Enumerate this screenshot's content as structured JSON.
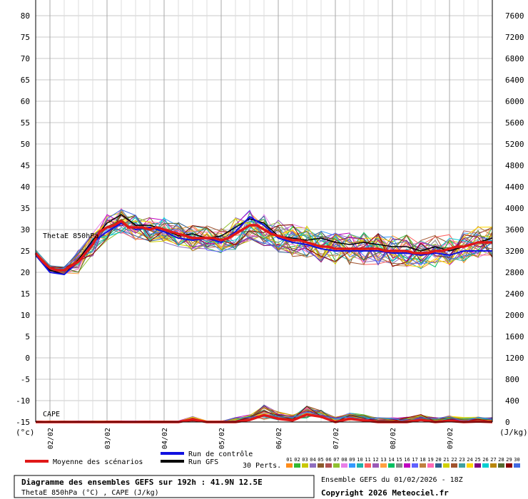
{
  "chart_data": {
    "type": "line",
    "left_axis": {
      "unit": "(°c)",
      "ticks": [
        "80",
        "75",
        "70",
        "65",
        "60",
        "55",
        "50",
        "45",
        "40",
        "35",
        "30",
        "25",
        "20",
        "15",
        "10",
        "5",
        "0",
        "-5",
        "-10",
        "-15"
      ],
      "range": [
        -15,
        80
      ]
    },
    "right_axis": {
      "unit": "(J/kg)",
      "ticks": [
        "7600",
        "7200",
        "6800",
        "6400",
        "6000",
        "5600",
        "5200",
        "4800",
        "4400",
        "4000",
        "3600",
        "3200",
        "2800",
        "2400",
        "2000",
        "1600",
        "1200",
        "800",
        "400",
        "0"
      ],
      "range": [
        0,
        7600
      ]
    },
    "date_ticks": [
      "02/02",
      "03/02",
      "04/02",
      "05/02",
      "06/02",
      "07/02",
      "08/02",
      "09/02"
    ],
    "x_range_hours": [
      0,
      192
    ],
    "grid": true,
    "labels": {
      "thetae": "ThetaE 850hPa",
      "cape": "CAPE"
    },
    "legend": {
      "mean": "Moyenne des scénarios",
      "control": "Run de contrôle",
      "gfs": "Run GFS",
      "perts": "30 Perts.",
      "pert_numbers": [
        "01",
        "02",
        "03",
        "04",
        "05",
        "06",
        "07",
        "08",
        "09",
        "10",
        "11",
        "12",
        "13",
        "14",
        "15",
        "16",
        "17",
        "18",
        "19",
        "20",
        "21",
        "22",
        "23",
        "24",
        "25",
        "26",
        "27",
        "28",
        "29",
        "30"
      ],
      "pert_colors": [
        "#ff8c1a",
        "#33b833",
        "#c8c800",
        "#8f6fbf",
        "#8b5a2b",
        "#b05050",
        "#90c030",
        "#e87fe8",
        "#3399ff",
        "#20b2aa",
        "#ff6060",
        "#9b59b6",
        "#ff9f40",
        "#00c060",
        "#888888",
        "#c000c0",
        "#6060ff",
        "#c08040",
        "#ff69b4",
        "#306090",
        "#d0d000",
        "#a0522d",
        "#40a0a0",
        "#ffd700",
        "#800080",
        "#00ced1",
        "#b8860b",
        "#556b2f",
        "#8b0000",
        "#4169e1"
      ]
    },
    "mean_color": "#e01818",
    "control_color": "#1010e0",
    "gfs_color": "#000000",
    "thetae_mean": [
      [
        0,
        24.5
      ],
      [
        3,
        22.5
      ],
      [
        6,
        21
      ],
      [
        9,
        20.5
      ],
      [
        12,
        20.5
      ],
      [
        15,
        21.5
      ],
      [
        18,
        22.5
      ],
      [
        21,
        24.5
      ],
      [
        24,
        26.5
      ],
      [
        27,
        29.5
      ],
      [
        30,
        30.5
      ],
      [
        33,
        31
      ],
      [
        36,
        32
      ],
      [
        39,
        30.5
      ],
      [
        42,
        30.5
      ],
      [
        45,
        30.5
      ],
      [
        48,
        30
      ],
      [
        51,
        30.5
      ],
      [
        54,
        30
      ],
      [
        57,
        29.5
      ],
      [
        60,
        29
      ],
      [
        63,
        28.5
      ],
      [
        66,
        28
      ],
      [
        69,
        28
      ],
      [
        72,
        28
      ],
      [
        75,
        28
      ],
      [
        78,
        27.5
      ],
      [
        81,
        28
      ],
      [
        84,
        29
      ],
      [
        87,
        30
      ],
      [
        90,
        31
      ],
      [
        93,
        31
      ],
      [
        96,
        30
      ],
      [
        99,
        29
      ],
      [
        102,
        28.5
      ],
      [
        105,
        28
      ],
      [
        108,
        27.5
      ],
      [
        111,
        27.5
      ],
      [
        114,
        27
      ],
      [
        117,
        26.5
      ],
      [
        120,
        26
      ],
      [
        123,
        26
      ],
      [
        126,
        25.5
      ],
      [
        129,
        25.5
      ],
      [
        132,
        25.5
      ],
      [
        135,
        25.5
      ],
      [
        138,
        25.5
      ],
      [
        141,
        25.5
      ],
      [
        144,
        25.5
      ],
      [
        147,
        25
      ],
      [
        150,
        25
      ],
      [
        153,
        25
      ],
      [
        156,
        25
      ],
      [
        159,
        24.5
      ],
      [
        162,
        24.5
      ],
      [
        165,
        24.5
      ],
      [
        168,
        25
      ],
      [
        171,
        25
      ],
      [
        174,
        25.5
      ],
      [
        177,
        26
      ],
      [
        180,
        26
      ],
      [
        183,
        26.5
      ],
      [
        186,
        27
      ],
      [
        189,
        27
      ],
      [
        192,
        27
      ]
    ],
    "thetae_control": [
      [
        0,
        24
      ],
      [
        6,
        20
      ],
      [
        12,
        19.5
      ],
      [
        18,
        22.5
      ],
      [
        24,
        27
      ],
      [
        30,
        29.5
      ],
      [
        36,
        31.5
      ],
      [
        42,
        30
      ],
      [
        48,
        30.5
      ],
      [
        54,
        29.5
      ],
      [
        60,
        28
      ],
      [
        66,
        27.5
      ],
      [
        72,
        28
      ],
      [
        78,
        27
      ],
      [
        84,
        29.5
      ],
      [
        90,
        33
      ],
      [
        96,
        31
      ],
      [
        102,
        28
      ],
      [
        108,
        27
      ],
      [
        114,
        26.5
      ],
      [
        120,
        25.5
      ],
      [
        126,
        25
      ],
      [
        132,
        25
      ],
      [
        138,
        25
      ],
      [
        144,
        25
      ],
      [
        150,
        24.5
      ],
      [
        156,
        24.5
      ],
      [
        162,
        24
      ],
      [
        168,
        24.5
      ],
      [
        174,
        24
      ],
      [
        180,
        25
      ],
      [
        186,
        25
      ],
      [
        192,
        25
      ]
    ],
    "thetae_gfs": [
      [
        0,
        24.5
      ],
      [
        6,
        20.5
      ],
      [
        12,
        19.5
      ],
      [
        18,
        23
      ],
      [
        24,
        27.5
      ],
      [
        30,
        31.5
      ],
      [
        36,
        33.5
      ],
      [
        42,
        31
      ],
      [
        48,
        31
      ],
      [
        54,
        30
      ],
      [
        60,
        28.5
      ],
      [
        66,
        29
      ],
      [
        72,
        28
      ],
      [
        78,
        28.5
      ],
      [
        84,
        30.5
      ],
      [
        90,
        32.5
      ],
      [
        96,
        31.5
      ],
      [
        102,
        28.5
      ],
      [
        108,
        28
      ],
      [
        114,
        27.5
      ],
      [
        120,
        28
      ],
      [
        126,
        27
      ],
      [
        132,
        26.5
      ],
      [
        138,
        27
      ],
      [
        144,
        26.5
      ],
      [
        150,
        26
      ],
      [
        156,
        26
      ],
      [
        162,
        25
      ],
      [
        168,
        26
      ],
      [
        174,
        25
      ],
      [
        180,
        26
      ],
      [
        186,
        27
      ],
      [
        192,
        28
      ]
    ],
    "cape_mean": [
      [
        0,
        0
      ],
      [
        24,
        0
      ],
      [
        36,
        0
      ],
      [
        48,
        0
      ],
      [
        60,
        0
      ],
      [
        66,
        50
      ],
      [
        72,
        0
      ],
      [
        84,
        0
      ],
      [
        90,
        40
      ],
      [
        96,
        130
      ],
      [
        102,
        60
      ],
      [
        108,
        30
      ],
      [
        114,
        140
      ],
      [
        120,
        100
      ],
      [
        126,
        0
      ],
      [
        132,
        60
      ],
      [
        138,
        30
      ],
      [
        144,
        0
      ],
      [
        150,
        0
      ],
      [
        156,
        0
      ],
      [
        162,
        40
      ],
      [
        168,
        0
      ],
      [
        174,
        20
      ],
      [
        180,
        0
      ],
      [
        186,
        10
      ],
      [
        192,
        0
      ]
    ]
  },
  "footer": {
    "title": "Diagramme des ensembles GEFS sur 192h : 41.9N 12.5E",
    "subtitle": "ThetaE 850hPa (°C) , CAPE (J/kg)",
    "run": "Ensemble GEFS du 01/02/2026 - 18Z",
    "copyright": "Copyright 2026 Meteociel.fr"
  }
}
